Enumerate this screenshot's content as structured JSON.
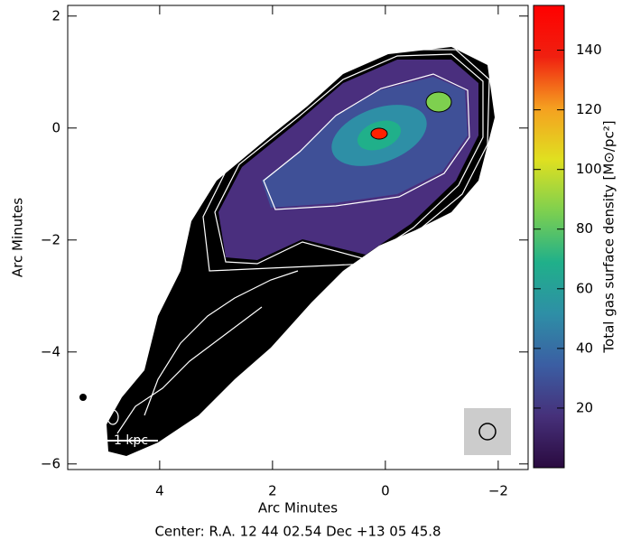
{
  "chart_data": {
    "type": "image",
    "xlabel": "Arc Minutes",
    "ylabel": "Arc Minutes",
    "xlim": [
      5.63,
      -2.53
    ],
    "ylim": [
      -6.1,
      2.19
    ],
    "xticks": [
      4,
      2,
      0,
      {
        "value": -2,
        "label": "−2"
      }
    ],
    "yticks": [
      {
        "value": -6,
        "label": "−6"
      },
      {
        "value": -4,
        "label": "−4"
      },
      {
        "value": -2,
        "label": "−2"
      },
      0,
      2
    ],
    "colorbar_label": "Total gas surface density [M⊙/pc²]",
    "colorbar_lim": [
      0,
      155
    ],
    "colorbar_ticks": [
      20,
      40,
      60,
      80,
      100,
      120,
      140
    ],
    "colormap": [
      "#2a0a3f",
      "#46307a",
      "#3b5ea3",
      "#2e8fa6",
      "#20b08a",
      "#7ed04f",
      "#e0e020",
      "#f5a020",
      "#f02010",
      "#ff0000"
    ],
    "scale_bar_label": "1 kpc",
    "footer": "Center:  R.A. 12 44 02.54     Dec  +13 05 45.8"
  }
}
